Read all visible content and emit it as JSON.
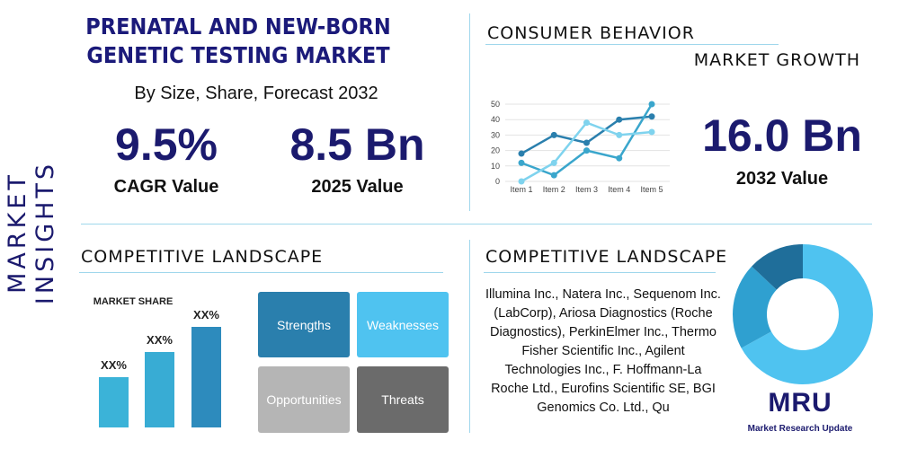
{
  "header": {
    "title": "PRENATAL AND NEW-BORN GENETIC TESTING MARKET",
    "subtitle": "By Size, Share, Forecast 2032"
  },
  "side_label": "MARKET INSIGHTS",
  "stats": [
    {
      "value": "9.5%",
      "label": "CAGR Value"
    },
    {
      "value": "8.5 Bn",
      "label": "2025 Value"
    }
  ],
  "consumer_behavior": {
    "heading": "CONSUMER BEHAVIOR"
  },
  "market_growth": {
    "heading": "MARKET GROWTH",
    "value": "16.0 Bn",
    "label": "2032 Value"
  },
  "competitive_landscape": [
    {
      "heading": "COMPETITIVE LANDSCAPE"
    },
    {
      "heading": "COMPETITIVE LANDSCAPE"
    }
  ],
  "swot": [
    "Strengths",
    "Weaknesses",
    "Opportunities",
    "Threats"
  ],
  "companies": "Illumina Inc., Natera Inc., Sequenom Inc. (LabCorp), Ariosa Diagnostics (Roche Diagnostics), PerkinElmer Inc., Thermo Fisher Scientific Inc., Agilent Technologies Inc., F. Hoffmann-La Roche Ltd., Eurofins Scientific SE, BGI Genomics Co. Ltd., Qu",
  "logo": {
    "name": "MRU",
    "tagline": "Market Research Update"
  },
  "chart_data": [
    {
      "type": "line",
      "categories": [
        "Item 1",
        "Item 2",
        "Item 3",
        "Item 4",
        "Item 5"
      ],
      "series": [
        {
          "color": "#2a7fad",
          "values": [
            18,
            30,
            25,
            40,
            42
          ]
        },
        {
          "color": "#3aa6cc",
          "values": [
            12,
            4,
            20,
            15,
            50
          ]
        },
        {
          "color": "#7fd3ee",
          "values": [
            0,
            12,
            38,
            30,
            32
          ]
        }
      ],
      "ylim": [
        0,
        50
      ],
      "yticks": [
        0,
        10,
        20,
        30,
        40,
        50
      ],
      "grid": true
    },
    {
      "type": "bar",
      "title": "MARKET SHARE",
      "values": [
        2,
        3,
        4
      ],
      "value_labels": [
        "XX%",
        "XX%",
        "XX%"
      ],
      "colors": [
        "#3bb3d8",
        "#38acd4",
        "#2d8bbd"
      ]
    },
    {
      "type": "pie",
      "values": [
        67,
        20,
        13
      ],
      "colors": [
        "#4fc3f0",
        "#2fa0d0",
        "#1f6e9a"
      ],
      "donut": true
    }
  ]
}
